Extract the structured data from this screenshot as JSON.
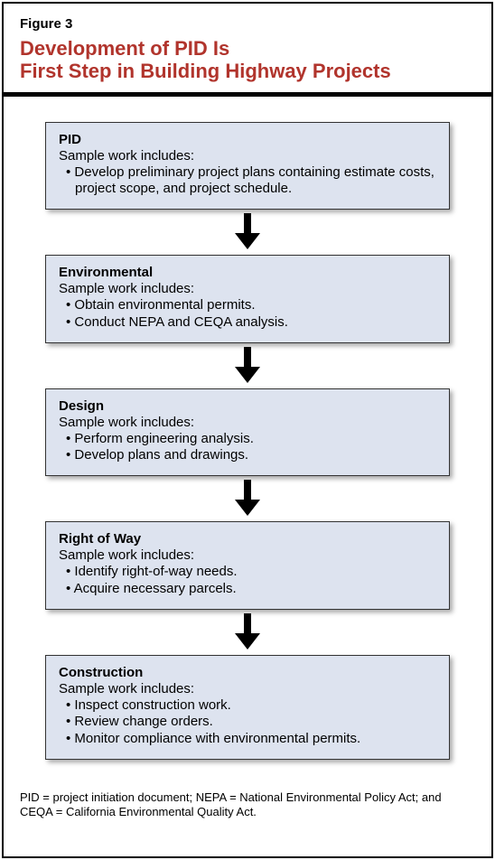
{
  "figure_label": "Figure 3",
  "title_line1": "Development of PID Is",
  "title_line2": "First Step in Building Highway Projects",
  "title_color": "#b1342c",
  "box_bg": "#dde3ef",
  "box_border": "#333333",
  "boxes": [
    {
      "title": "PID",
      "subtitle": "Sample work includes:",
      "bullets": [
        "Develop preliminary project plans containing estimate costs, project scope, and project schedule."
      ]
    },
    {
      "title": "Environmental",
      "subtitle": "Sample work includes:",
      "bullets": [
        "Obtain environmental permits.",
        "Conduct NEPA and CEQA analysis."
      ]
    },
    {
      "title": "Design",
      "subtitle": "Sample work includes:",
      "bullets": [
        "Perform engineering analysis.",
        "Develop plans and drawings."
      ]
    },
    {
      "title": "Right of Way",
      "subtitle": "Sample work includes:",
      "bullets": [
        "Identify right-of-way needs.",
        "Acquire necessary parcels."
      ]
    },
    {
      "title": "Construction",
      "subtitle": "Sample work includes:",
      "bullets": [
        "Inspect construction work.",
        "Review change orders.",
        "Monitor compliance with environmental permits."
      ]
    }
  ],
  "arrow": {
    "width": 28,
    "height": 40,
    "fill": "#000000"
  },
  "footnote": "PID = project initiation document; NEPA = National Environmental Policy Act; and CEQA = California Environmental Quality Act."
}
